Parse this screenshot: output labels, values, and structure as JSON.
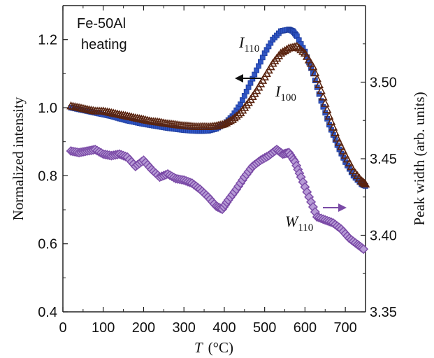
{
  "chart_data": {
    "type": "scatter",
    "title": "",
    "sample_label": [
      "Fe-50Al",
      "heating"
    ],
    "x_label": {
      "var": "T",
      "unit": "(°C)"
    },
    "y_label_left": "Normalized intensity",
    "y_label_right": "Peak width  (arb. units)",
    "xlim": [
      0,
      750
    ],
    "ylim_left": [
      0.4,
      1.3
    ],
    "ylim_right": [
      3.35,
      3.55
    ],
    "x_ticks": [
      "0",
      "100",
      "200",
      "300",
      "400",
      "500",
      "600",
      "700"
    ],
    "y_ticks_left": [
      "0.4",
      "0.6",
      "0.8",
      "1.0",
      "1.2"
    ],
    "y_ticks_right": [
      "3.35",
      "3.40",
      "3.45",
      "3.50"
    ],
    "grid": false,
    "series": [
      {
        "name": "I110",
        "axis": "left",
        "marker": "square",
        "color": "#2f55c4",
        "x": [
          20,
          40,
          60,
          80,
          100,
          120,
          140,
          160,
          180,
          200,
          220,
          240,
          260,
          280,
          300,
          320,
          340,
          360,
          380,
          400,
          420,
          440,
          460,
          480,
          500,
          520,
          540,
          560,
          570,
          580,
          600,
          620,
          640,
          660,
          680,
          700,
          720,
          740,
          750
        ],
        "y": [
          1.0,
          0.995,
          0.99,
          0.985,
          0.98,
          0.975,
          0.968,
          0.962,
          0.957,
          0.952,
          0.948,
          0.944,
          0.94,
          0.937,
          0.934,
          0.932,
          0.931,
          0.932,
          0.938,
          0.952,
          0.975,
          1.01,
          1.06,
          1.11,
          1.16,
          1.2,
          1.225,
          1.23,
          1.225,
          1.21,
          1.165,
          1.1,
          1.02,
          0.95,
          0.89,
          0.84,
          0.8,
          0.775,
          0.77
        ]
      },
      {
        "name": "I100",
        "axis": "left",
        "marker": "triangle",
        "color": "#5a2410",
        "x": [
          20,
          40,
          60,
          80,
          100,
          120,
          140,
          160,
          180,
          200,
          220,
          240,
          260,
          280,
          300,
          320,
          340,
          360,
          380,
          400,
          420,
          440,
          460,
          480,
          500,
          520,
          540,
          560,
          580,
          600,
          620,
          640,
          660,
          680,
          700,
          720,
          740,
          750
        ],
        "y": [
          1.005,
          1.0,
          0.995,
          0.99,
          0.99,
          0.985,
          0.98,
          0.975,
          0.97,
          0.965,
          0.96,
          0.957,
          0.953,
          0.95,
          0.947,
          0.945,
          0.944,
          0.944,
          0.946,
          0.952,
          0.965,
          0.985,
          1.015,
          1.05,
          1.09,
          1.13,
          1.16,
          1.175,
          1.18,
          1.16,
          1.12,
          1.05,
          0.975,
          0.91,
          0.86,
          0.815,
          0.785,
          0.775
        ]
      },
      {
        "name": "W110",
        "axis": "right",
        "marker": "diamond",
        "color": "#7a4aa6",
        "x": [
          20,
          40,
          60,
          80,
          100,
          120,
          140,
          160,
          180,
          200,
          220,
          240,
          260,
          280,
          300,
          320,
          340,
          360,
          380,
          395,
          410,
          430,
          450,
          470,
          490,
          510,
          530,
          545,
          560,
          575,
          590,
          610,
          630,
          650,
          670,
          690,
          710,
          730,
          745
        ],
        "y": [
          3.455,
          3.454,
          3.455,
          3.456,
          3.453,
          3.452,
          3.453,
          3.451,
          3.445,
          3.449,
          3.443,
          3.438,
          3.44,
          3.437,
          3.436,
          3.434,
          3.43,
          3.425,
          3.419,
          3.417,
          3.423,
          3.43,
          3.438,
          3.445,
          3.449,
          3.452,
          3.456,
          3.453,
          3.454,
          3.448,
          3.438,
          3.425,
          3.412,
          3.41,
          3.408,
          3.404,
          3.398,
          3.394,
          3.391
        ]
      }
    ],
    "annotations": [
      {
        "var": "I",
        "sub": "110",
        "series": "I110"
      },
      {
        "var": "I",
        "sub": "100",
        "series": "I100"
      },
      {
        "var": "W",
        "sub": "110",
        "series": "W110"
      }
    ]
  }
}
